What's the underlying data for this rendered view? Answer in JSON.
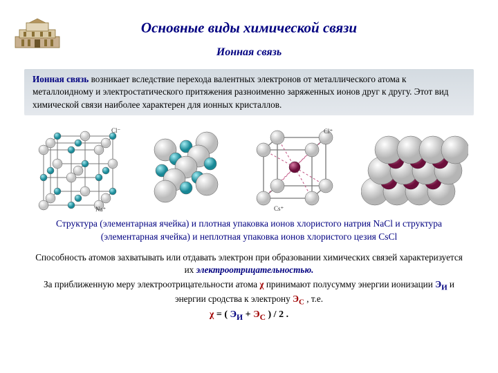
{
  "title": "Основные виды химической связи",
  "subtitle": "Ионная связь",
  "para1_lead": "Ионная связь",
  "para1_rest": " возникает вследствие перехода валентных электронов от металлического атома к металлоидному и электростатического притяжения разноименно заряженных ионов друг к другу. Этот вид химической связи наиболее характерен для ионных кристаллов.",
  "caption": "Структура (элементарная ячейка) и плотная упаковка ионов хлористого натрия NaCl и структура (элементарная ячейка) и неплотная упаковка ионов хлористого цезия  CsCl",
  "para2_a": "Способность атомов захватывать или отдавать электрон при образовании химических связей характеризуется их ",
  "para2_b": "электроотрицательностью.",
  "para3_a": "За приближенную меру электроотрицательности атома ",
  "para3_b": " принимают полусумму энергии ионизации ",
  "para3_c": " и энергии сродства к электрону ",
  "para3_d": " , т.е.",
  "chi": "χ",
  "Ei": "Э",
  "Ei_sub": "И",
  "Ec": "Э",
  "Ec_sub": "С",
  "formula_eq": " = ( ",
  "formula_plus": " + ",
  "formula_end": " ) / 2 .",
  "labels": {
    "Clm": "Cl⁻",
    "Nap": "Na⁺",
    "Csp": "Cs⁺",
    "Clp": "Cl⁺"
  },
  "colors": {
    "navy": "#000080",
    "red": "#a00000",
    "teal": "#2aa8b8",
    "maroon": "#8a1a4a",
    "grey": "#b8b8b8",
    "lightgrey": "#e0e0e0",
    "line": "#666666"
  }
}
